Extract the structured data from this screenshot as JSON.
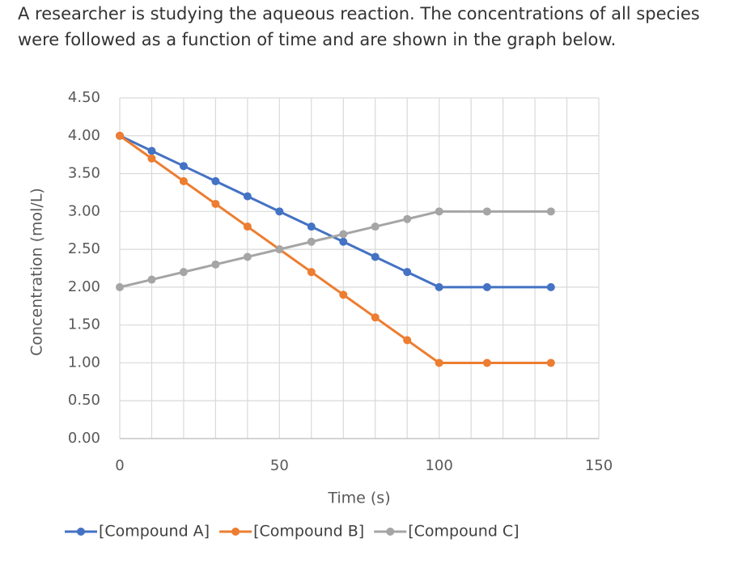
{
  "intro": [
    "A researcher is studying the aqueous reaction. The concentrations of all species",
    "were followed as a function of time and are shown in the graph below."
  ],
  "chart_data": {
    "type": "line",
    "x_label": "Time (s)",
    "y_label": "Concentration (mol/L)",
    "x": [
      0,
      10,
      20,
      30,
      40,
      50,
      60,
      70,
      80,
      90,
      100,
      115,
      135
    ],
    "series": [
      {
        "name": "[Compound A]",
        "color": "#4472c4",
        "values": [
          4.0,
          3.8,
          3.6,
          3.4,
          3.2,
          3.0,
          2.8,
          2.6,
          2.4,
          2.2,
          2.0,
          2.0,
          2.0
        ]
      },
      {
        "name": "[Compound B]",
        "color": "#ed7d31",
        "values": [
          4.0,
          3.7,
          3.4,
          3.1,
          2.8,
          2.5,
          2.2,
          1.9,
          1.6,
          1.3,
          1.0,
          1.0,
          1.0
        ]
      },
      {
        "name": "[Compound C]",
        "color": "#a5a5a5",
        "values": [
          2.0,
          2.1,
          2.2,
          2.3,
          2.4,
          2.5,
          2.6,
          2.7,
          2.8,
          2.9,
          3.0,
          3.0,
          3.0
        ]
      }
    ],
    "xlim": [
      0,
      150
    ],
    "xticks": [
      0,
      50,
      100,
      150
    ],
    "ylim": [
      0,
      4.5
    ],
    "yticks": [
      {
        "value": 0,
        "label": "0.00"
      },
      {
        "value": 0.5,
        "label": "0.50"
      },
      {
        "value": 1,
        "label": "1.00"
      },
      {
        "value": 1.5,
        "label": "1.50"
      },
      {
        "value": 2,
        "label": "2.00"
      },
      {
        "value": 2.5,
        "label": "2.50"
      },
      {
        "value": 3,
        "label": "3.00"
      },
      {
        "value": 3.5,
        "label": "3.50"
      },
      {
        "value": 4,
        "label": "4.00"
      },
      {
        "value": 4.5,
        "label": "4.50"
      }
    ],
    "grid": true,
    "legend": "bottom"
  }
}
